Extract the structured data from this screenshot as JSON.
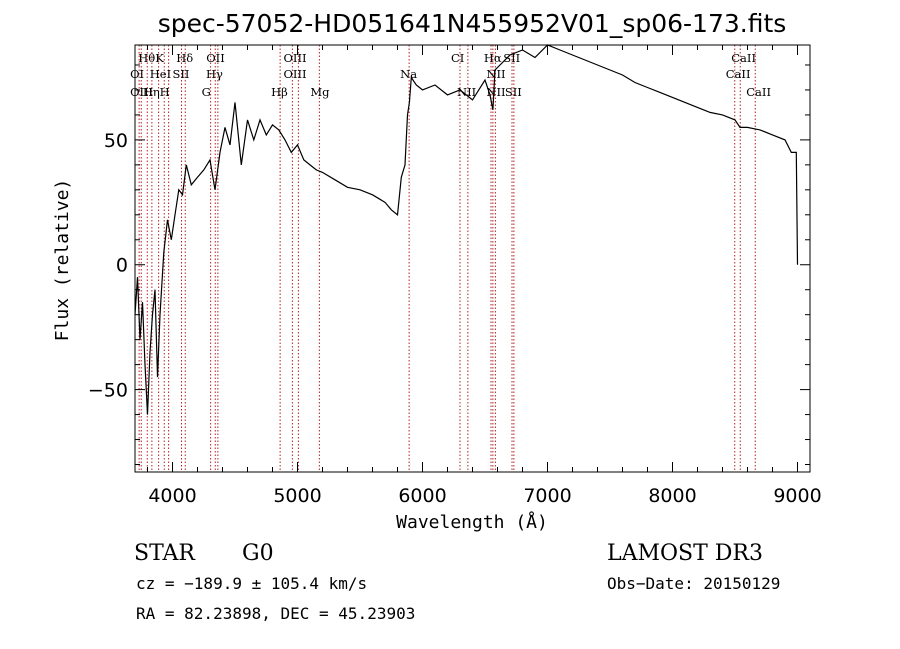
{
  "chart_data": {
    "type": "line",
    "title": "spec-57052-HD051641N455952V01_sp06-173.fits",
    "xlabel": "Wavelength (Å)",
    "ylabel": "Flux (relative)",
    "xlim": [
      3700,
      9100
    ],
    "ylim": [
      -83,
      88
    ],
    "xticks": [
      4000,
      5000,
      6000,
      7000,
      8000,
      9000
    ],
    "yticks": [
      -50,
      0,
      50
    ],
    "series": [
      {
        "name": "spectrum",
        "x": [
          3700,
          3720,
          3740,
          3760,
          3780,
          3800,
          3820,
          3840,
          3860,
          3880,
          3900,
          3930,
          3960,
          3990,
          4020,
          4050,
          4080,
          4110,
          4150,
          4200,
          4250,
          4300,
          4340,
          4380,
          4420,
          4460,
          4500,
          4550,
          4600,
          4650,
          4700,
          4750,
          4800,
          4850,
          4900,
          4950,
          5000,
          5050,
          5100,
          5150,
          5200,
          5300,
          5400,
          5500,
          5600,
          5700,
          5750,
          5800,
          5830,
          5860,
          5880,
          5895,
          5910,
          5950,
          6000,
          6100,
          6200,
          6300,
          6400,
          6500,
          6540,
          6563,
          6580,
          6620,
          6700,
          6800,
          6900,
          7000,
          7100,
          7200,
          7300,
          7400,
          7500,
          7600,
          7700,
          7800,
          7900,
          8000,
          8100,
          8200,
          8300,
          8400,
          8500,
          8540,
          8600,
          8700,
          8800,
          8900,
          8950,
          8990,
          9000
        ],
        "y": [
          -20,
          -5,
          -30,
          -15,
          -40,
          -60,
          -35,
          -20,
          -10,
          -45,
          -20,
          5,
          18,
          10,
          20,
          30,
          28,
          40,
          32,
          35,
          38,
          42,
          30,
          45,
          55,
          48,
          65,
          40,
          58,
          50,
          58,
          52,
          56,
          54,
          50,
          45,
          48,
          42,
          40,
          38,
          37,
          34,
          31,
          30,
          28,
          25,
          22,
          20,
          35,
          40,
          60,
          65,
          75,
          72,
          70,
          72,
          68,
          70,
          66,
          74,
          68,
          62,
          78,
          80,
          84,
          86,
          83,
          88,
          86,
          84,
          82,
          80,
          78,
          76,
          73,
          71,
          69,
          67,
          65,
          63,
          61,
          60,
          58,
          55,
          55,
          54,
          52,
          50,
          45,
          45,
          0
        ]
      }
    ],
    "line_markers": [
      {
        "label": "Hθ",
        "wavelength": 3798,
        "row": 1
      },
      {
        "label": "K",
        "wavelength": 3934,
        "row": 1
      },
      {
        "label": "Hδ",
        "wavelength": 4102,
        "row": 1
      },
      {
        "label": "OII",
        "wavelength": 4342,
        "row": 1
      },
      {
        "label": "OIII",
        "wavelength": 4960,
        "row": 1
      },
      {
        "label": "CI",
        "wavelength": 6300,
        "row": 1
      },
      {
        "label": "Hα",
        "wavelength": 6563,
        "row": 1
      },
      {
        "label": "SII",
        "wavelength": 6718,
        "row": 1
      },
      {
        "label": "CaII",
        "wavelength": 8542,
        "row": 1
      },
      {
        "label": "OI",
        "wavelength": 3733,
        "row": 2
      },
      {
        "label": "HeI",
        "wavelength": 3890,
        "row": 2
      },
      {
        "label": "SII",
        "wavelength": 4072,
        "row": 2
      },
      {
        "label": "Hγ",
        "wavelength": 4340,
        "row": 2
      },
      {
        "label": "OIII",
        "wavelength": 4960,
        "row": 2
      },
      {
        "label": "Na",
        "wavelength": 5893,
        "row": 2
      },
      {
        "label": "NII",
        "wavelength": 6583,
        "row": 2
      },
      {
        "label": "CaII",
        "wavelength": 8498,
        "row": 2
      },
      {
        "label": "OIII",
        "wavelength": 3733,
        "row": 3
      },
      {
        "label": "Hη",
        "wavelength": 3835,
        "row": 3
      },
      {
        "label": "H",
        "wavelength": 3969,
        "row": 3
      },
      {
        "label": "G",
        "wavelength": 4305,
        "row": 3
      },
      {
        "label": "Hβ",
        "wavelength": 4861,
        "row": 3
      },
      {
        "label": "Mg",
        "wavelength": 5175,
        "row": 3
      },
      {
        "label": "NII",
        "wavelength": 6348,
        "row": 3
      },
      {
        "label": "NII",
        "wavelength": 6583,
        "row": 3
      },
      {
        "label": "SII",
        "wavelength": 6731,
        "row": 3
      },
      {
        "label": "CaII",
        "wavelength": 8662,
        "row": 3
      }
    ],
    "marker_wavelengths": [
      3733,
      3750,
      3798,
      3835,
      3889,
      3934,
      3969,
      4072,
      4102,
      4305,
      4342,
      4363,
      4861,
      4959,
      5007,
      5175,
      5893,
      6300,
      6363,
      6548,
      6563,
      6583,
      6716,
      6731,
      8498,
      8542,
      8662
    ]
  },
  "info": {
    "object_class": "STAR",
    "subclass": "G0",
    "survey": "LAMOST DR3",
    "cz": "cz = −189.9 ± 105.4 km/s",
    "obs_date": "Obs−Date: 20150129",
    "coords": "RA =  82.23898, DEC =  45.23903"
  }
}
